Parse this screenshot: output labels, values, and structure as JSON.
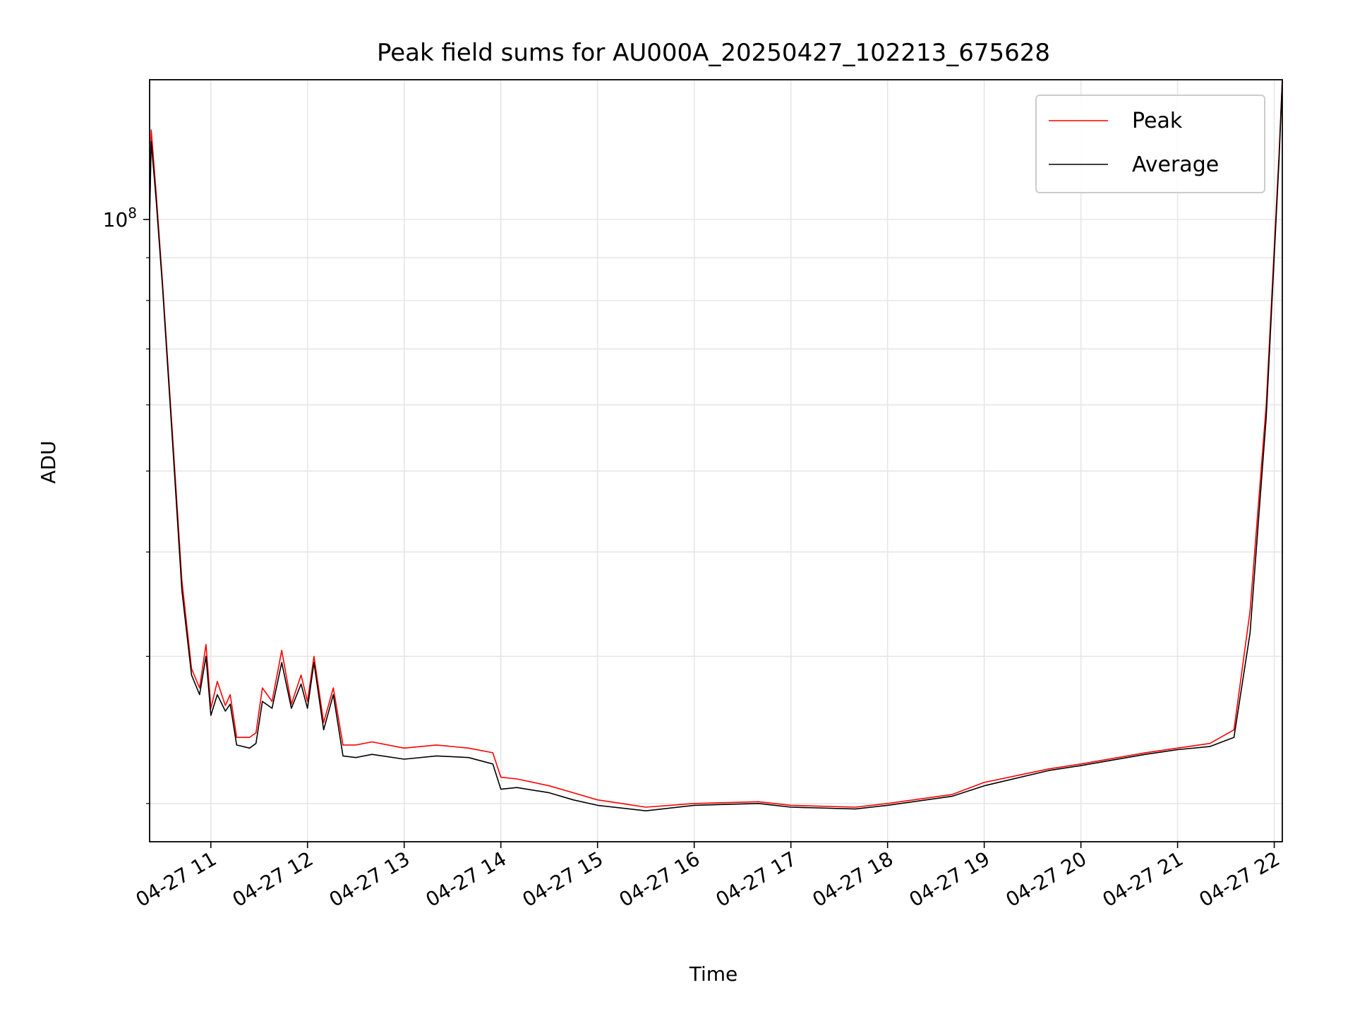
{
  "chart_data": {
    "type": "line",
    "title": "Peak field sums for AU000A_20250427_102213_675628",
    "xlabel": "Time",
    "ylabel": "ADU",
    "y_scale": "log",
    "y_tick_label": {
      "base": "10",
      "exponent": "8",
      "value": 100000000
    },
    "grid": true,
    "legend_position": "upper right",
    "x_range": [
      "04-27 10:22",
      "04-27 22:05"
    ],
    "y_range": [
      18000000,
      147000000
    ],
    "x_ticks": [
      "04-27 11",
      "04-27 12",
      "04-27 13",
      "04-27 14",
      "04-27 15",
      "04-27 16",
      "04-27 17",
      "04-27 18",
      "04-27 19",
      "04-27 20",
      "04-27 21",
      "04-27 22"
    ],
    "series": [
      {
        "name": "Peak",
        "color": "#ff0000",
        "points": [
          [
            "04-27 10:22",
            100000000
          ],
          [
            "04-27 10:23",
            128000000
          ],
          [
            "04-27 10:26",
            108000000
          ],
          [
            "04-27 10:30",
            84000000
          ],
          [
            "04-27 10:36",
            56000000
          ],
          [
            "04-27 10:42",
            37000000
          ],
          [
            "04-27 10:48",
            29000000
          ],
          [
            "04-27 10:53",
            27500000
          ],
          [
            "04-27 10:57",
            31000000
          ],
          [
            "04-27 11:00",
            26000000
          ],
          [
            "04-27 11:04",
            28000000
          ],
          [
            "04-27 11:09",
            26200000
          ],
          [
            "04-27 11:12",
            27000000
          ],
          [
            "04-27 11:16",
            24000000
          ],
          [
            "04-27 11:24",
            24000000
          ],
          [
            "04-27 11:28",
            24300000
          ],
          [
            "04-27 11:32",
            27500000
          ],
          [
            "04-27 11:38",
            26500000
          ],
          [
            "04-27 11:44",
            30500000
          ],
          [
            "04-27 11:50",
            26300000
          ],
          [
            "04-27 11:56",
            28500000
          ],
          [
            "04-27 12:00",
            26500000
          ],
          [
            "04-27 12:04",
            30000000
          ],
          [
            "04-27 12:10",
            25000000
          ],
          [
            "04-27 12:16",
            27500000
          ],
          [
            "04-27 12:22",
            23500000
          ],
          [
            "04-27 12:30",
            23500000
          ],
          [
            "04-27 12:40",
            23700000
          ],
          [
            "04-27 13:00",
            23300000
          ],
          [
            "04-27 13:20",
            23500000
          ],
          [
            "04-27 13:40",
            23300000
          ],
          [
            "04-27 13:55",
            23000000
          ],
          [
            "04-27 14:00",
            21500000
          ],
          [
            "04-27 14:10",
            21400000
          ],
          [
            "04-27 14:30",
            21000000
          ],
          [
            "04-27 14:45",
            20600000
          ],
          [
            "04-27 15:00",
            20200000
          ],
          [
            "04-27 15:30",
            19800000
          ],
          [
            "04-27 16:00",
            20000000
          ],
          [
            "04-27 16:40",
            20100000
          ],
          [
            "04-27 17:00",
            19900000
          ],
          [
            "04-27 17:40",
            19800000
          ],
          [
            "04-27 18:00",
            20000000
          ],
          [
            "04-27 18:40",
            20500000
          ],
          [
            "04-27 19:00",
            21200000
          ],
          [
            "04-27 19:40",
            22000000
          ],
          [
            "04-27 20:00",
            22300000
          ],
          [
            "04-27 20:40",
            23000000
          ],
          [
            "04-27 21:00",
            23300000
          ],
          [
            "04-27 21:20",
            23600000
          ],
          [
            "04-27 21:35",
            24500000
          ],
          [
            "04-27 21:45",
            34000000
          ],
          [
            "04-27 21:55",
            60000000
          ],
          [
            "04-27 22:03",
            120000000
          ],
          [
            "04-27 22:05",
            147000000
          ]
        ]
      },
      {
        "name": "Average",
        "color": "#000000",
        "points": [
          [
            "04-27 10:22",
            100000000
          ],
          [
            "04-27 10:23",
            124000000
          ],
          [
            "04-27 10:26",
            106000000
          ],
          [
            "04-27 10:30",
            83000000
          ],
          [
            "04-27 10:36",
            55000000
          ],
          [
            "04-27 10:42",
            36000000
          ],
          [
            "04-27 10:48",
            28500000
          ],
          [
            "04-27 10:53",
            27000000
          ],
          [
            "04-27 10:57",
            30000000
          ],
          [
            "04-27 11:00",
            25500000
          ],
          [
            "04-27 11:04",
            27000000
          ],
          [
            "04-27 11:09",
            25800000
          ],
          [
            "04-27 11:12",
            26300000
          ],
          [
            "04-27 11:16",
            23500000
          ],
          [
            "04-27 11:24",
            23300000
          ],
          [
            "04-27 11:28",
            23600000
          ],
          [
            "04-27 11:32",
            26500000
          ],
          [
            "04-27 11:38",
            26000000
          ],
          [
            "04-27 11:44",
            29500000
          ],
          [
            "04-27 11:50",
            26000000
          ],
          [
            "04-27 11:56",
            27800000
          ],
          [
            "04-27 12:00",
            26000000
          ],
          [
            "04-27 12:04",
            29500000
          ],
          [
            "04-27 12:10",
            24500000
          ],
          [
            "04-27 12:16",
            27000000
          ],
          [
            "04-27 12:22",
            22800000
          ],
          [
            "04-27 12:30",
            22700000
          ],
          [
            "04-27 12:40",
            22900000
          ],
          [
            "04-27 13:00",
            22600000
          ],
          [
            "04-27 13:20",
            22800000
          ],
          [
            "04-27 13:40",
            22700000
          ],
          [
            "04-27 13:55",
            22300000
          ],
          [
            "04-27 14:00",
            20800000
          ],
          [
            "04-27 14:10",
            20900000
          ],
          [
            "04-27 14:30",
            20600000
          ],
          [
            "04-27 14:45",
            20200000
          ],
          [
            "04-27 15:00",
            19900000
          ],
          [
            "04-27 15:30",
            19600000
          ],
          [
            "04-27 16:00",
            19900000
          ],
          [
            "04-27 16:40",
            20000000
          ],
          [
            "04-27 17:00",
            19800000
          ],
          [
            "04-27 17:40",
            19700000
          ],
          [
            "04-27 18:00",
            19900000
          ],
          [
            "04-27 18:40",
            20400000
          ],
          [
            "04-27 19:00",
            21000000
          ],
          [
            "04-27 19:40",
            21900000
          ],
          [
            "04-27 20:00",
            22200000
          ],
          [
            "04-27 20:40",
            22900000
          ],
          [
            "04-27 21:00",
            23200000
          ],
          [
            "04-27 21:20",
            23400000
          ],
          [
            "04-27 21:35",
            24000000
          ],
          [
            "04-27 21:45",
            32000000
          ],
          [
            "04-27 21:55",
            58000000
          ],
          [
            "04-27 22:03",
            118000000
          ],
          [
            "04-27 22:05",
            147000000
          ]
        ]
      }
    ]
  }
}
